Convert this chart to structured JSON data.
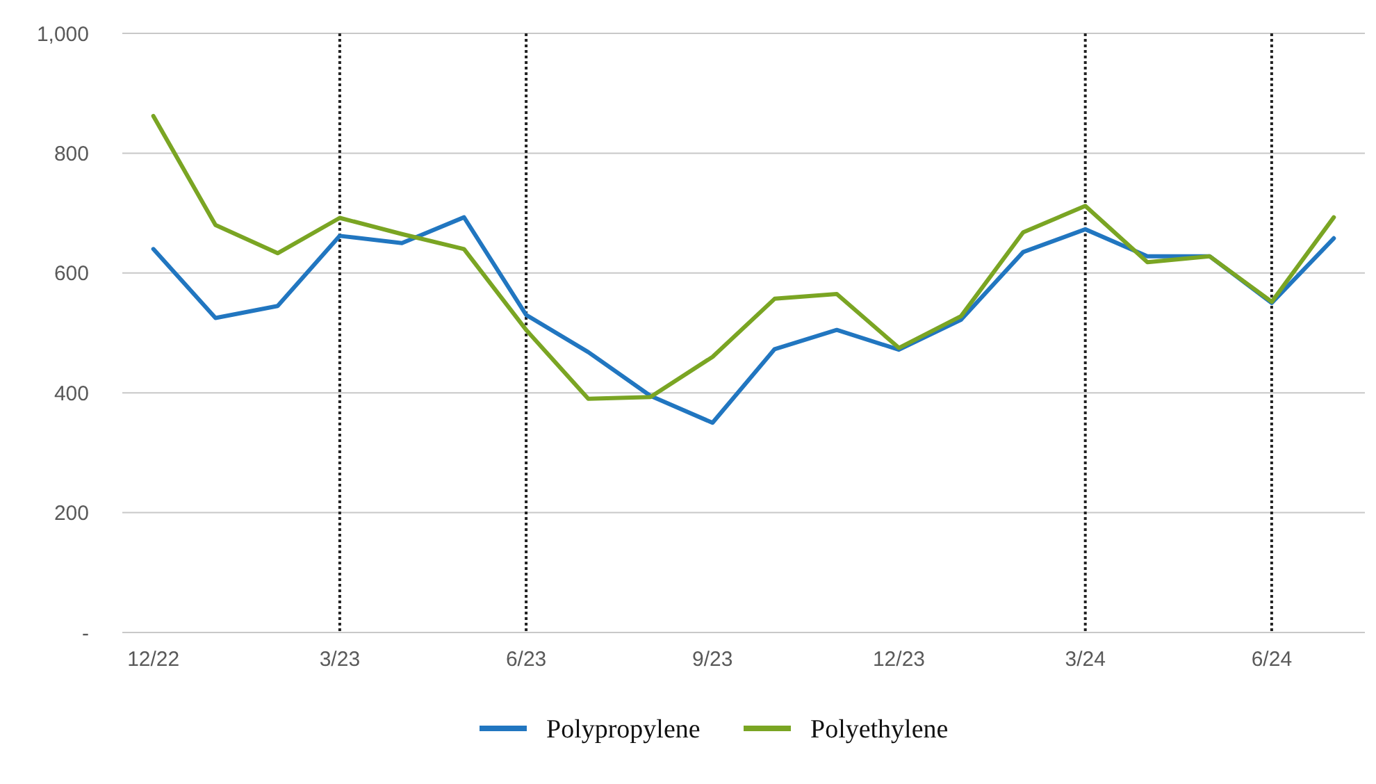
{
  "chart_data": {
    "type": "line",
    "categories": [
      "12/22",
      null,
      null,
      "3/23",
      null,
      null,
      "6/23",
      null,
      null,
      "9/23",
      null,
      null,
      "12/23",
      null,
      null,
      "3/24",
      null,
      null,
      "6/24",
      null
    ],
    "series": [
      {
        "name": "Polypropylene",
        "color": "#2176c0",
        "values": [
          640,
          525,
          545,
          662,
          650,
          693,
          530,
          468,
          395,
          350,
          473,
          505,
          472,
          522,
          635,
          673,
          628,
          628,
          550,
          658
        ]
      },
      {
        "name": "Polyethylene",
        "color": "#7aa523",
        "values": [
          862,
          680,
          633,
          692,
          665,
          640,
          505,
          390,
          393,
          460,
          557,
          565,
          475,
          528,
          668,
          712,
          618,
          628,
          552,
          693
        ]
      }
    ],
    "ylim": [
      0,
      1000
    ],
    "yticks": [
      {
        "value": 0,
        "label": "-"
      },
      200,
      400,
      600,
      800,
      {
        "value": 1000,
        "label": "1,000"
      }
    ],
    "grid": "y",
    "legend": "bottom",
    "marker": "none",
    "line_style": "solid",
    "ref_lines": [
      {
        "axis": "x",
        "value": "3/23",
        "color": "#222222",
        "line_style": "dotted"
      },
      {
        "axis": "x",
        "value": "6/23",
        "color": "#222222",
        "line_style": "dotted"
      },
      {
        "axis": "x",
        "value": "3/24",
        "color": "#222222",
        "line_style": "dotted"
      },
      {
        "axis": "x",
        "value": "6/24",
        "color": "#222222",
        "line_style": "dotted"
      }
    ]
  }
}
